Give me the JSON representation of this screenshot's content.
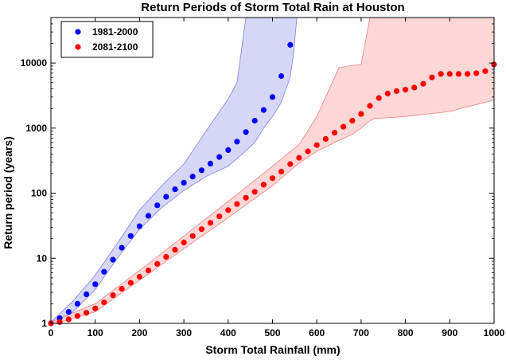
{
  "chart_data": {
    "type": "scatter",
    "title": "Return Periods of Storm Total Rain at Houston",
    "xlabel": "Storm Total Rainfall (mm)",
    "ylabel": "Return period (years)",
    "xlim": [
      0,
      1000
    ],
    "ylim": [
      1,
      50000
    ],
    "yscale": "log",
    "x_ticks": [
      0,
      100,
      200,
      300,
      400,
      500,
      600,
      700,
      800,
      900,
      1000
    ],
    "y_ticks": [
      1,
      10,
      100,
      1000,
      10000
    ],
    "y_tick_labels": [
      "1",
      "10",
      "100",
      "1000",
      "10000"
    ],
    "grid": false,
    "legend_position": "top-left",
    "series": [
      {
        "name": "1981-2000",
        "color": "#0000ff",
        "band_color": "#c8c8f4",
        "band_edge": "#8080e0",
        "x": [
          0,
          20,
          40,
          60,
          80,
          100,
          120,
          140,
          160,
          180,
          200,
          220,
          240,
          260,
          280,
          300,
          320,
          340,
          360,
          380,
          400,
          420,
          440,
          460,
          480,
          500,
          520,
          540
        ],
        "y": [
          1.0,
          1.2,
          1.5,
          2.0,
          2.8,
          4.0,
          6.2,
          9.5,
          14.5,
          22,
          31,
          45,
          65,
          88,
          115,
          145,
          180,
          225,
          285,
          360,
          460,
          620,
          870,
          1300,
          1900,
          3000,
          6300,
          19000
        ],
        "band_x": [
          0,
          50,
          100,
          150,
          200,
          250,
          300,
          350,
          400,
          420,
          440,
          460,
          480,
          500,
          520,
          540,
          548,
          555
        ],
        "band_upper": [
          1.05,
          2.2,
          5.5,
          17,
          55,
          130,
          280,
          900,
          2800,
          5000,
          50000,
          50000,
          50000,
          50000,
          50000,
          50000,
          50000,
          50000
        ],
        "band_lower": [
          0.95,
          1.5,
          3.3,
          10,
          28,
          60,
          110,
          180,
          260,
          340,
          450,
          600,
          1000,
          1500,
          2500,
          6000,
          15000,
          50000
        ]
      },
      {
        "name": "2081-2100",
        "color": "#ff0000",
        "band_color": "#fcc8c8",
        "band_edge": "#f08080",
        "x": [
          0,
          20,
          40,
          60,
          80,
          100,
          120,
          140,
          160,
          180,
          200,
          220,
          240,
          260,
          280,
          300,
          320,
          340,
          360,
          380,
          400,
          420,
          440,
          460,
          480,
          500,
          520,
          540,
          560,
          580,
          600,
          620,
          640,
          660,
          680,
          700,
          720,
          740,
          760,
          780,
          800,
          820,
          840,
          860,
          880,
          900,
          920,
          940,
          960,
          980,
          1000
        ],
        "y": [
          1.0,
          1.05,
          1.15,
          1.3,
          1.45,
          1.7,
          2.1,
          2.7,
          3.4,
          4.2,
          5.2,
          6.5,
          8.2,
          10.5,
          13.5,
          17.5,
          22,
          28,
          35,
          44,
          55,
          68,
          85,
          105,
          135,
          170,
          215,
          280,
          350,
          440,
          550,
          680,
          850,
          1050,
          1300,
          1650,
          2200,
          2900,
          3400,
          3700,
          3900,
          4200,
          4800,
          6000,
          6800,
          6800,
          6800,
          6800,
          7000,
          7500,
          9500
        ],
        "band_x": [
          0,
          100,
          200,
          300,
          400,
          500,
          560,
          600,
          650,
          680,
          700,
          720,
          730,
          800,
          900,
          1000
        ],
        "band_upper": [
          1.05,
          2.0,
          6.5,
          22,
          75,
          260,
          560,
          1500,
          8500,
          9200,
          9500,
          50000,
          50000,
          50000,
          50000,
          50000
        ],
        "band_lower": [
          0.95,
          1.5,
          4.6,
          14,
          42,
          130,
          290,
          440,
          650,
          800,
          1000,
          1300,
          1400,
          1500,
          1800,
          2700
        ]
      }
    ]
  }
}
